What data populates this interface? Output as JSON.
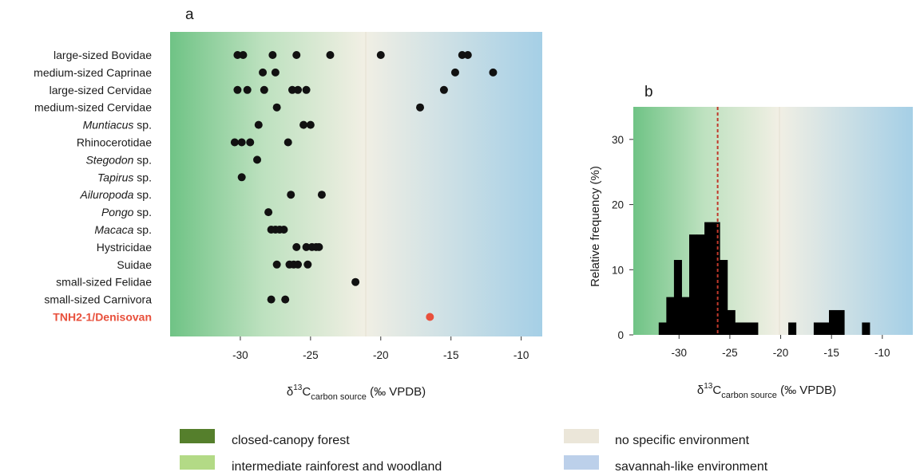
{
  "colors": {
    "forest_green": "#6fc385",
    "neutral_beige": "#f1efe4",
    "savanna_blue": "#a5cfe6",
    "point": "#111111",
    "highlight": "#e8503c",
    "bar": "#000000",
    "median_line": "#c0392b",
    "legend_closed": "#557f2c",
    "legend_intermediate": "#b3da86",
    "legend_nospecific": "#ebe6d9",
    "legend_savanna": "#bcd0ea"
  },
  "chart_data": [
    {
      "type": "scatter",
      "panel_label": "a",
      "xlabel": {
        "main": "δ",
        "sup": "13",
        "mid": "C",
        "sub": "carbon source",
        "tail": " (‰ VPDB)"
      },
      "xlim": [
        -35,
        -8.5
      ],
      "xticks": [
        -30,
        -25,
        -20,
        -15,
        -10
      ],
      "xtick_labels": [
        "-30",
        "-25",
        "-20",
        "-15",
        "-10"
      ],
      "categories": [
        {
          "parts": [
            {
              "t": "large-sized Bovidae",
              "i": false
            }
          ]
        },
        {
          "parts": [
            {
              "t": "medium-sized Caprinae",
              "i": false
            }
          ]
        },
        {
          "parts": [
            {
              "t": "large-sized Cervidae",
              "i": false
            }
          ]
        },
        {
          "parts": [
            {
              "t": "medium-sized Cervidae",
              "i": false
            }
          ]
        },
        {
          "parts": [
            {
              "t": "Muntiacus",
              "i": true
            },
            {
              "t": " sp.",
              "i": false
            }
          ]
        },
        {
          "parts": [
            {
              "t": "Rhinocerotidae",
              "i": false
            }
          ]
        },
        {
          "parts": [
            {
              "t": "Stegodon",
              "i": true
            },
            {
              "t": " sp.",
              "i": false
            }
          ]
        },
        {
          "parts": [
            {
              "t": "Tapirus",
              "i": true
            },
            {
              "t": " sp.",
              "i": false
            }
          ]
        },
        {
          "parts": [
            {
              "t": "Ailuropoda",
              "i": true
            },
            {
              "t": " sp.",
              "i": false
            }
          ]
        },
        {
          "parts": [
            {
              "t": "Pongo",
              "i": true
            },
            {
              "t": " sp.",
              "i": false
            }
          ]
        },
        {
          "parts": [
            {
              "t": "Macaca",
              "i": true
            },
            {
              "t": " sp.",
              "i": false
            }
          ]
        },
        {
          "parts": [
            {
              "t": "Hystricidae",
              "i": false
            }
          ]
        },
        {
          "parts": [
            {
              "t": "Suidae",
              "i": false
            }
          ]
        },
        {
          "parts": [
            {
              "t": "small-sized Felidae",
              "i": false
            }
          ]
        },
        {
          "parts": [
            {
              "t": "small-sized Carnivora",
              "i": false
            }
          ]
        },
        {
          "parts": [
            {
              "t": "TNH2-1/Denisovan",
              "i": false
            }
          ],
          "highlight": true
        }
      ],
      "values": [
        [
          -30.2,
          -29.8,
          -27.7,
          -26.0,
          -23.6,
          -20.0,
          -14.2,
          -13.8
        ],
        [
          -28.4,
          -27.5,
          -14.7,
          -12.0
        ],
        [
          -30.2,
          -29.5,
          -28.3,
          -26.3,
          -25.9,
          -25.3,
          -15.5
        ],
        [
          -27.4,
          -17.2
        ],
        [
          -28.7,
          -25.5,
          -25.0
        ],
        [
          -30.4,
          -29.9,
          -29.3,
          -26.6
        ],
        [
          -28.8
        ],
        [
          -29.9
        ],
        [
          -26.4,
          -24.2
        ],
        [
          -28.0
        ],
        [
          -27.8,
          -27.5,
          -27.2,
          -26.9
        ],
        [
          -26.0,
          -25.3,
          -24.9,
          -24.6,
          -24.4
        ],
        [
          -27.4,
          -26.5,
          -26.2,
          -25.9,
          -25.2
        ],
        [
          -21.8
        ],
        [
          -27.8,
          -26.8
        ],
        [
          -16.5
        ]
      ],
      "background_gradient": "green (closed-canopy forest) → beige (no specific environment, around -20) → blue (savannah-like)"
    },
    {
      "type": "bar",
      "panel_label": "b",
      "ylabel": "Relative frequency (%)",
      "xlabel": {
        "main": "δ",
        "sup": "13",
        "mid": "C",
        "sub": "carbon source",
        "tail": " (‰ VPDB)"
      },
      "xlim": [
        -34.5,
        -7
      ],
      "ylim": [
        0,
        35
      ],
      "xticks": [
        -30,
        -25,
        -20,
        -15,
        -10
      ],
      "xtick_labels": [
        "-30",
        "-25",
        "-20",
        "-15",
        "-10"
      ],
      "yticks": [
        0,
        10,
        20,
        30
      ],
      "ytick_labels": [
        "0",
        "10",
        "20",
        "30"
      ],
      "bin_width": 0.75,
      "bins": [
        {
          "x0": -32.0,
          "x1": -31.25,
          "value": 1.9
        },
        {
          "x0": -31.25,
          "x1": -30.5,
          "value": 5.8
        },
        {
          "x0": -30.5,
          "x1": -29.75,
          "value": 11.5
        },
        {
          "x0": -29.75,
          "x1": -29.0,
          "value": 5.8
        },
        {
          "x0": -29.0,
          "x1": -28.25,
          "value": 15.4
        },
        {
          "x0": -28.25,
          "x1": -27.5,
          "value": 15.4
        },
        {
          "x0": -27.5,
          "x1": -26.75,
          "value": 17.3
        },
        {
          "x0": -26.75,
          "x1": -26.0,
          "value": 17.3
        },
        {
          "x0": -26.0,
          "x1": -25.25,
          "value": 11.5
        },
        {
          "x0": -25.25,
          "x1": -24.5,
          "value": 3.8
        },
        {
          "x0": -24.5,
          "x1": -23.75,
          "value": 1.9
        },
        {
          "x0": -23.75,
          "x1": -22.25,
          "value": 1.9
        },
        {
          "x0": -19.25,
          "x1": -18.5,
          "value": 1.9
        },
        {
          "x0": -16.75,
          "x1": -15.25,
          "value": 1.9
        },
        {
          "x0": -15.25,
          "x1": -13.75,
          "value": 3.8
        },
        {
          "x0": -12.0,
          "x1": -11.25,
          "value": 1.9
        }
      ],
      "median_line_x": -26.2
    }
  ],
  "legend": [
    {
      "label": "closed-canopy forest",
      "color": "#557f2c"
    },
    {
      "label": "intermediate rainforest and woodland",
      "color": "#b3da86"
    },
    {
      "label": "no specific environment",
      "color": "#ebe6d9"
    },
    {
      "label": "savannah-like environment",
      "color": "#bcd0ea"
    }
  ]
}
